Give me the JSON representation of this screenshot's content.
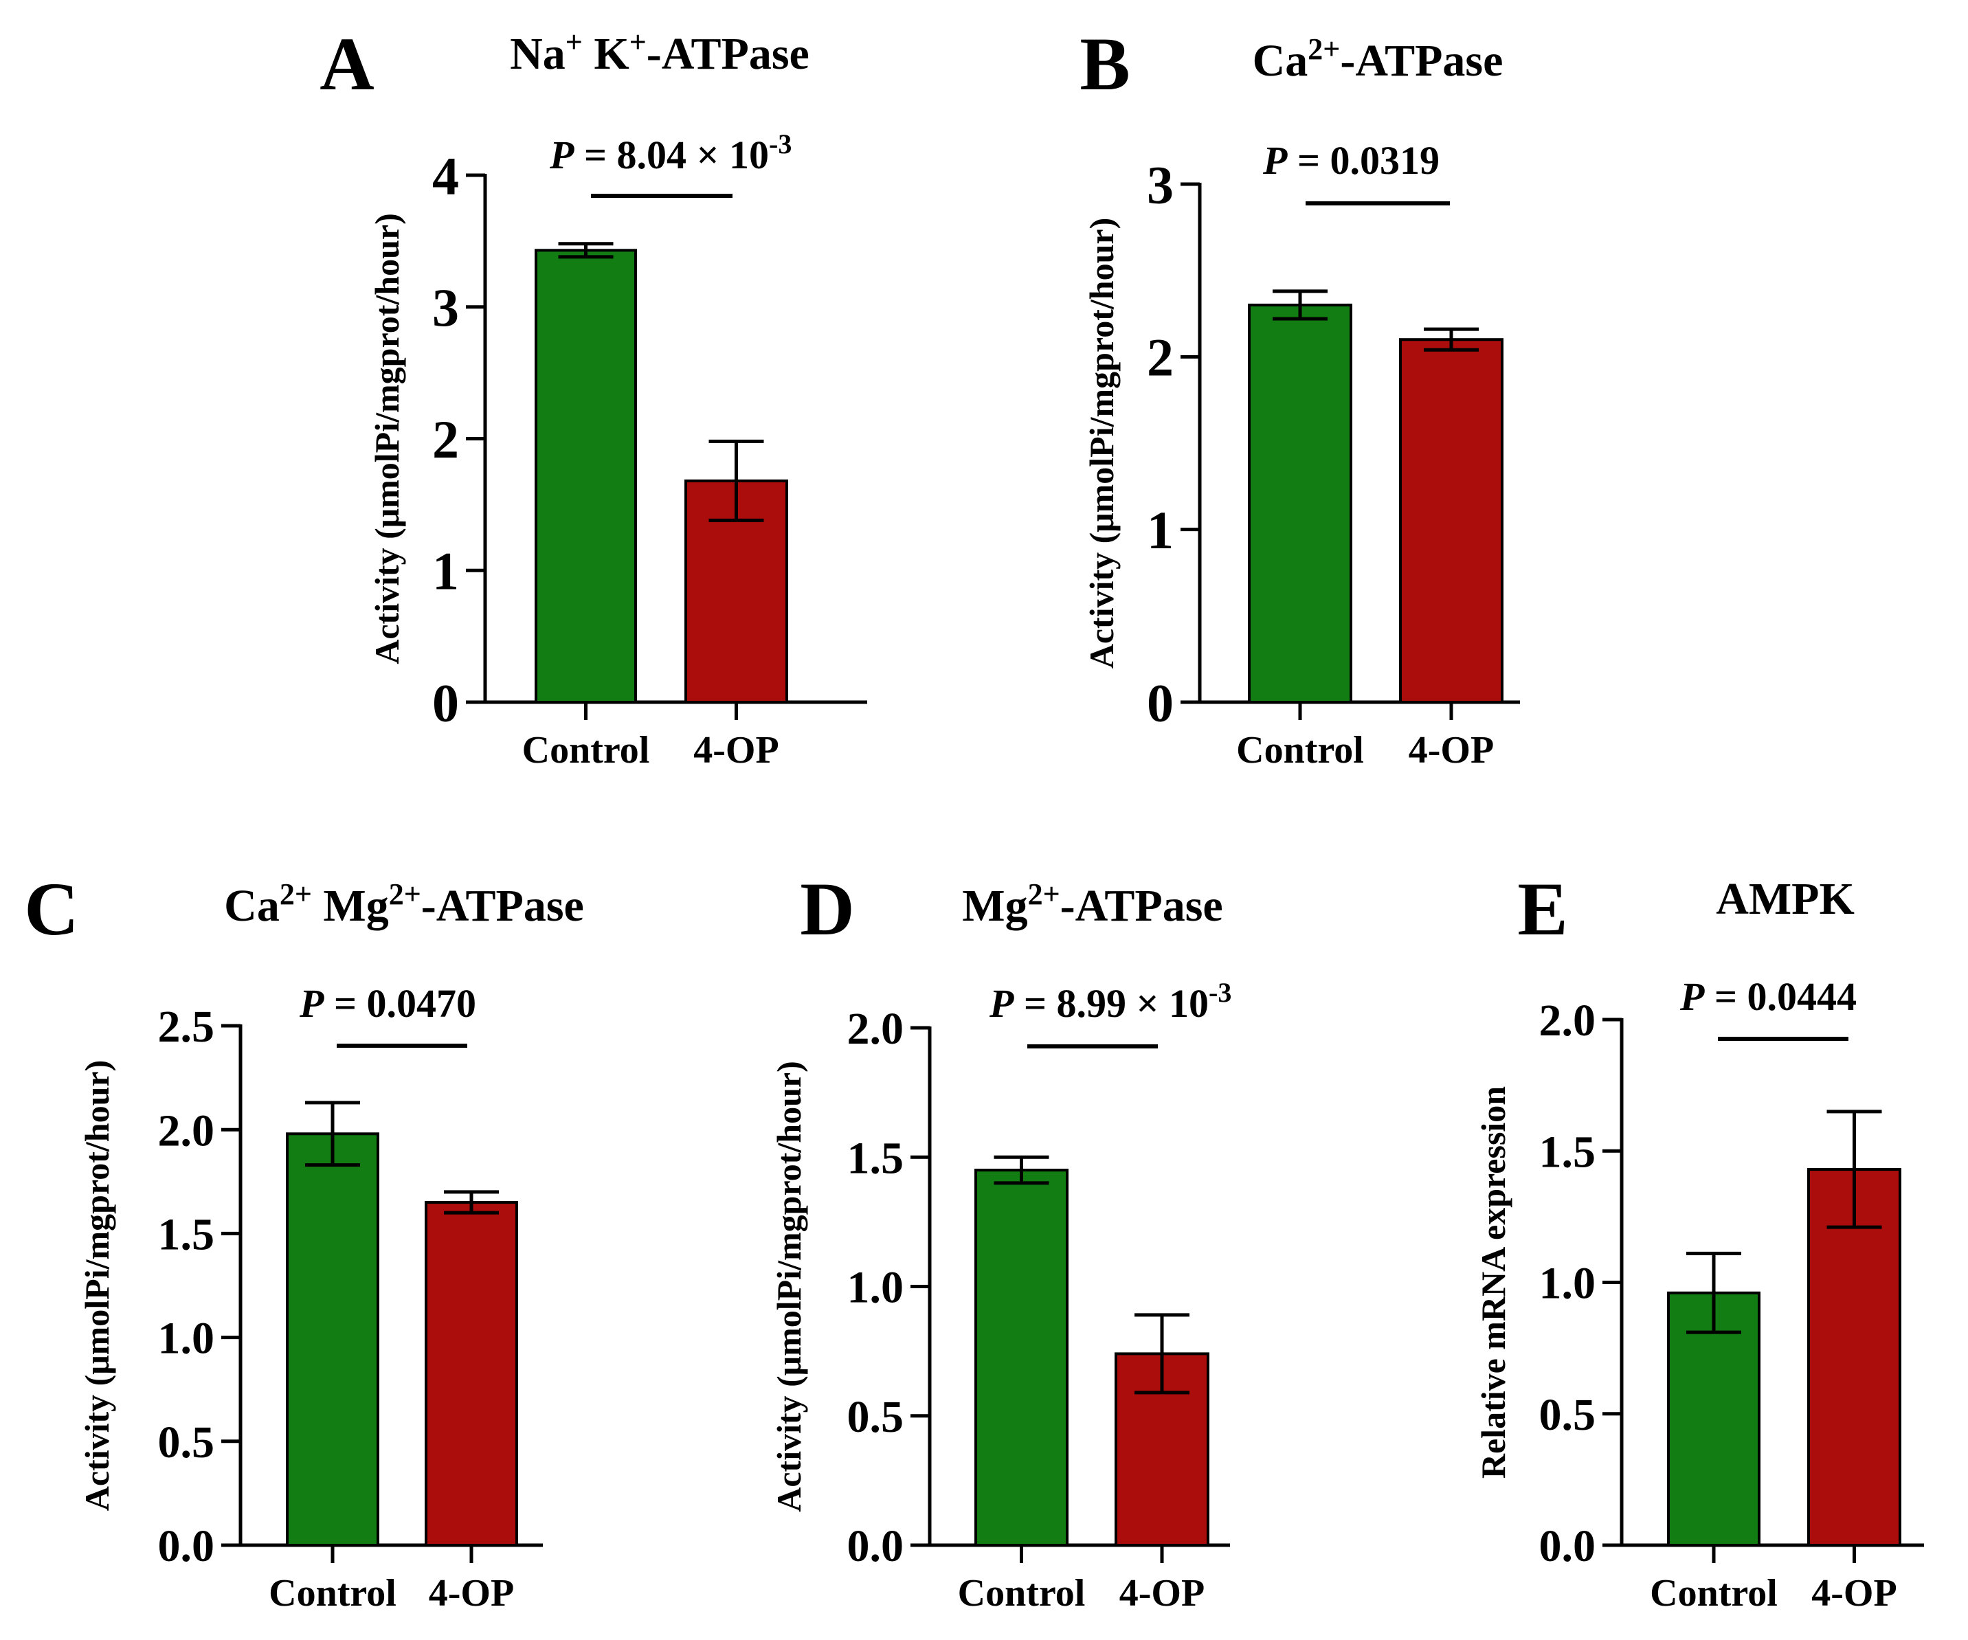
{
  "colors": {
    "control": "#127d12",
    "treated": "#ab0d0d",
    "axis": "#000000"
  },
  "chart_data": [
    {
      "type": "bar",
      "panel": "A",
      "title": "Na⁺ K⁺-ATPase",
      "title_parts": [
        [
          "Na",
          ""
        ],
        [
          "+",
          "sup"
        ],
        [
          " K",
          ""
        ],
        [
          "+",
          "sup"
        ],
        [
          "-ATPase",
          ""
        ]
      ],
      "ylabel": "Activity (μmolPi/mgprot/hour)",
      "categories": [
        "Control",
        "4-OP"
      ],
      "values": [
        3.43,
        1.68
      ],
      "errors": [
        0.05,
        0.3
      ],
      "ylim": [
        0,
        4
      ],
      "yticks": [
        "0",
        "1",
        "2",
        "3",
        "4"
      ],
      "p_label": "= 8.04 × 10",
      "p_exp": "-3"
    },
    {
      "type": "bar",
      "panel": "B",
      "title": "Ca²⁺-ATPase",
      "title_parts": [
        [
          "Ca",
          ""
        ],
        [
          "2+",
          "sup"
        ],
        [
          "-ATPase",
          ""
        ]
      ],
      "ylabel": "Activity (μmolPi/mgprot/hour)",
      "categories": [
        "Control",
        "4-OP"
      ],
      "values": [
        2.3,
        2.1
      ],
      "errors": [
        0.08,
        0.06
      ],
      "ylim": [
        0,
        3
      ],
      "yticks": [
        "0",
        "1",
        "2",
        "3"
      ],
      "p_label": "= 0.0319",
      "p_exp": ""
    },
    {
      "type": "bar",
      "panel": "C",
      "title": "Ca²⁺ Mg²⁺-ATPase",
      "title_parts": [
        [
          "Ca",
          ""
        ],
        [
          "2+",
          "sup"
        ],
        [
          " Mg",
          ""
        ],
        [
          "2+",
          "sup"
        ],
        [
          "-ATPase",
          ""
        ]
      ],
      "ylabel": "Activity (μmolPi/mgprot/hour)",
      "categories": [
        "Control",
        "4-OP"
      ],
      "values": [
        1.98,
        1.65
      ],
      "errors": [
        0.15,
        0.05
      ],
      "ylim": [
        0,
        2.5
      ],
      "yticks": [
        "0.0",
        "0.5",
        "1.0",
        "1.5",
        "2.0",
        "2.5"
      ],
      "p_label": "= 0.0470",
      "p_exp": ""
    },
    {
      "type": "bar",
      "panel": "D",
      "title": "Mg²⁺-ATPase",
      "title_parts": [
        [
          "Mg",
          ""
        ],
        [
          "2+",
          "sup"
        ],
        [
          "-ATPase",
          ""
        ]
      ],
      "ylabel": "Activity (μmolPi/mgprot/hour)",
      "categories": [
        "Control",
        "4-OP"
      ],
      "values": [
        1.45,
        0.74
      ],
      "errors": [
        0.05,
        0.15
      ],
      "ylim": [
        0,
        2.0
      ],
      "yticks": [
        "0.0",
        "0.5",
        "1.0",
        "1.5",
        "2.0"
      ],
      "p_label": "= 8.99 × 10",
      "p_exp": "-3"
    },
    {
      "type": "bar",
      "panel": "E",
      "title": "AMPK",
      "title_parts": [
        [
          "AMPK",
          ""
        ]
      ],
      "ylabel": "Relative mRNA expression",
      "categories": [
        "Control",
        "4-OP"
      ],
      "values": [
        0.96,
        1.43
      ],
      "errors": [
        0.15,
        0.22
      ],
      "ylim": [
        0,
        2.0
      ],
      "yticks": [
        "0.0",
        "0.5",
        "1.0",
        "1.5",
        "2.0"
      ],
      "p_label": "= 0.0444",
      "p_exp": ""
    }
  ]
}
